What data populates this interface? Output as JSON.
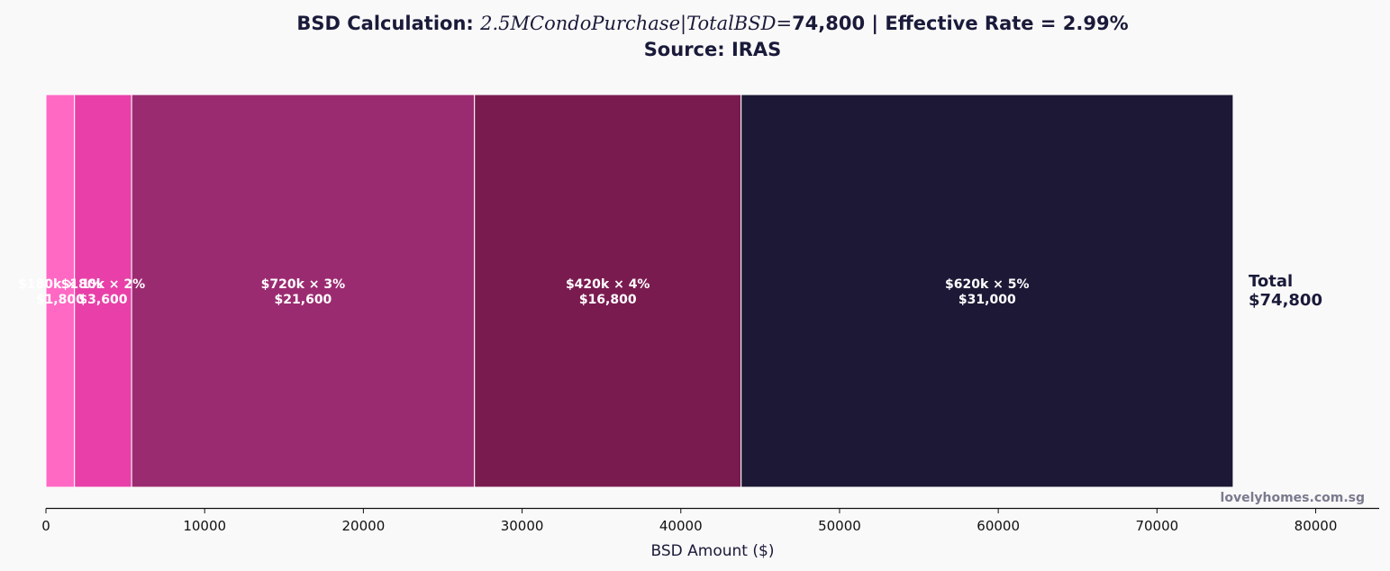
{
  "chart_data": {
    "type": "bar",
    "orientation": "horizontal-stacked",
    "title": {
      "line1_prefix": "BSD Calculation: ",
      "line1_math": "2.5MCondoPurchase|TotalBSD=",
      "line1_suffix": "74,800  |  Effective Rate = 2.99%",
      "line2": "Source: IRAS"
    },
    "xlabel": "BSD Amount ($)",
    "ylabel": "",
    "xlim": [
      0,
      84000
    ],
    "xticks": [
      0,
      10000,
      20000,
      30000,
      40000,
      50000,
      60000,
      70000,
      80000
    ],
    "grid": false,
    "series": [
      {
        "label_line1": "$180k × 1%",
        "label_line2": "$1,800",
        "value": 1800,
        "color": "#ff69c4"
      },
      {
        "label_line1": "$180k × 2%",
        "label_line2": "$3,600",
        "value": 3600,
        "color": "#e840a8"
      },
      {
        "label_line1": "$720k × 3%",
        "label_line2": "$21,600",
        "value": 21600,
        "color": "#9b2b71"
      },
      {
        "label_line1": "$420k × 4%",
        "label_line2": "$16,800",
        "value": 16800,
        "color": "#7a1b50"
      },
      {
        "label_line1": "$620k × 5%",
        "label_line2": "$31,000",
        "value": 31000,
        "color": "#1c1836"
      }
    ],
    "total": {
      "line1": "Total",
      "line2": "$74,800",
      "value": 74800
    },
    "watermark": "lovelyhomes.com.sg"
  }
}
